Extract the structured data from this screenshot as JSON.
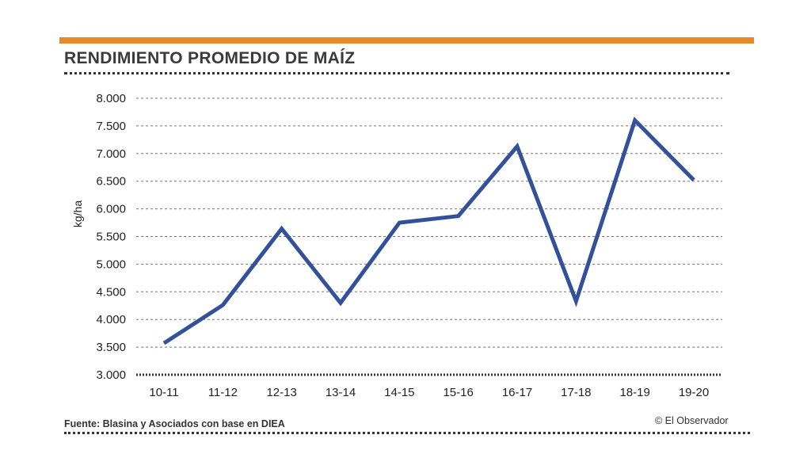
{
  "colors": {
    "accent": "#e8892b",
    "line": "#33509a"
  },
  "chart_data": {
    "type": "line",
    "title": "RENDIMIENTO PROMEDIO DE MAÍZ",
    "ylabel": "kg/ha",
    "xlabel": "",
    "ylim": [
      3000,
      8000
    ],
    "yticks": [
      "3.000",
      "3.500",
      "4.000",
      "4.500",
      "5.000",
      "5.500",
      "6.000",
      "6.500",
      "7.000",
      "7.500",
      "8.000"
    ],
    "ytick_values": [
      3000,
      3500,
      4000,
      4500,
      5000,
      5500,
      6000,
      6500,
      7000,
      7500,
      8000
    ],
    "categories": [
      "10-11",
      "11-12",
      "12-13",
      "13-14",
      "14-15",
      "15-16",
      "16-17",
      "17-18",
      "18-19",
      "19-20"
    ],
    "series": [
      {
        "name": "Rendimiento",
        "values": [
          3570,
          4260,
          5640,
          4300,
          5750,
          5870,
          7130,
          4330,
          7600,
          6520
        ]
      }
    ],
    "grid": true,
    "legend": "none"
  },
  "footer": {
    "source": "Fuente: Blasina y Asociados con base en DIEA",
    "credit": "© El Observador"
  }
}
